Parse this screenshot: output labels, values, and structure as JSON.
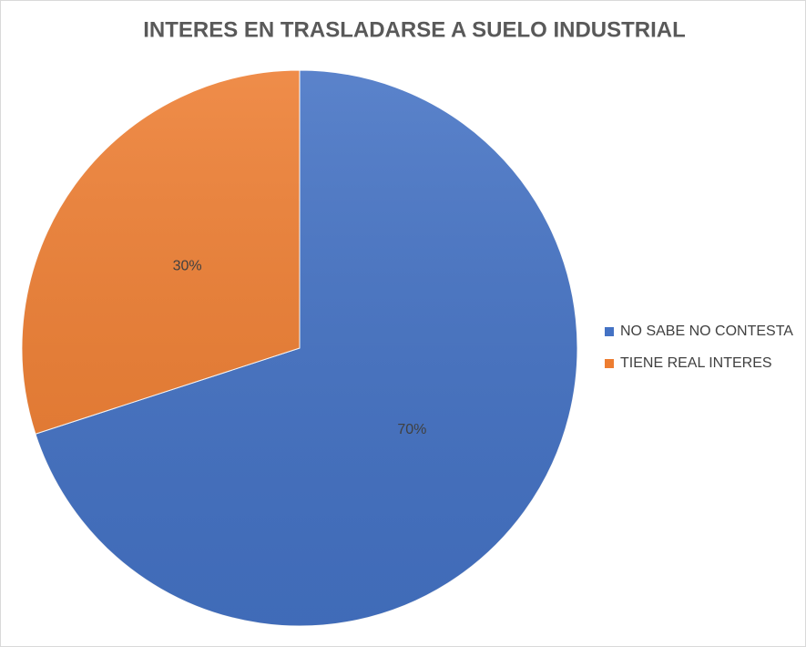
{
  "chart_data": {
    "type": "pie",
    "title": "INTERES EN TRASLADARSE A SUELO INDUSTRIAL",
    "categories": [
      "NO SABE NO CONTESTA",
      "TIENE REAL INTERES"
    ],
    "values": [
      70,
      30
    ],
    "value_labels": [
      "70%",
      "30%"
    ],
    "colors": [
      "#4472c4",
      "#ed7d31"
    ],
    "legend": "right"
  }
}
